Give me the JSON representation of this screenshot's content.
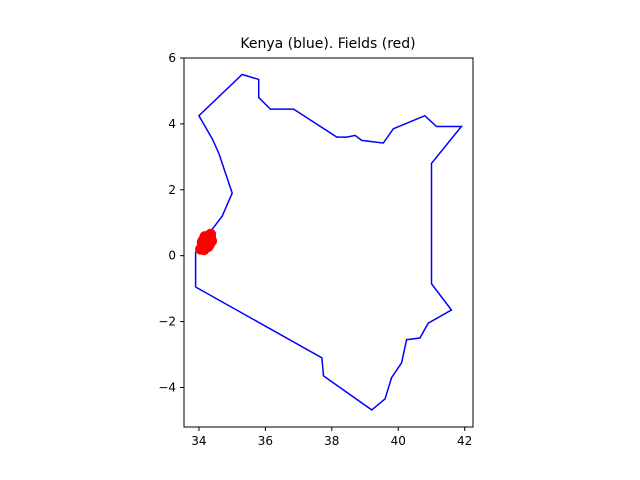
{
  "chart_data": {
    "type": "scatter",
    "title": "Kenya (blue). Fields (red)",
    "xlim": [
      33.55,
      42.25
    ],
    "ylim": [
      -5.2,
      6.0
    ],
    "x_ticks": [
      34,
      36,
      38,
      40,
      42
    ],
    "y_ticks": [
      -4,
      -2,
      0,
      2,
      4,
      6
    ],
    "grid": false,
    "series": [
      {
        "kind": "line",
        "color": "#0000ff",
        "points": [
          [
            33.9,
            -0.95
          ],
          [
            33.9,
            0.1
          ],
          [
            34.2,
            0.5
          ],
          [
            34.4,
            0.8
          ],
          [
            34.7,
            1.2
          ],
          [
            35.0,
            1.9
          ],
          [
            34.6,
            3.1
          ],
          [
            34.4,
            3.55
          ],
          [
            34.0,
            4.25
          ],
          [
            35.3,
            5.5
          ],
          [
            35.8,
            5.35
          ],
          [
            35.8,
            4.8
          ],
          [
            36.15,
            4.45
          ],
          [
            36.85,
            4.45
          ],
          [
            38.15,
            3.6
          ],
          [
            38.45,
            3.6
          ],
          [
            38.7,
            3.65
          ],
          [
            38.9,
            3.5
          ],
          [
            39.55,
            3.42
          ],
          [
            39.85,
            3.85
          ],
          [
            40.8,
            4.25
          ],
          [
            41.15,
            3.92
          ],
          [
            41.9,
            3.92
          ],
          [
            41.0,
            2.8
          ],
          [
            41.0,
            -0.85
          ],
          [
            41.6,
            -1.65
          ],
          [
            40.9,
            -2.05
          ],
          [
            40.65,
            -2.5
          ],
          [
            40.25,
            -2.55
          ],
          [
            40.1,
            -3.25
          ],
          [
            39.8,
            -3.7
          ],
          [
            39.6,
            -4.35
          ],
          [
            39.2,
            -4.68
          ],
          [
            37.75,
            -3.65
          ],
          [
            37.7,
            -3.1
          ],
          [
            33.9,
            -0.95
          ]
        ]
      },
      {
        "kind": "scatter",
        "color": "#ff0000",
        "points": [
          [
            34.05,
            0.2
          ],
          [
            34.1,
            0.25
          ],
          [
            34.15,
            0.3
          ],
          [
            34.1,
            0.4
          ],
          [
            34.2,
            0.5
          ],
          [
            34.25,
            0.55
          ],
          [
            34.3,
            0.6
          ],
          [
            34.35,
            0.65
          ],
          [
            34.38,
            0.45
          ],
          [
            34.3,
            0.4
          ],
          [
            34.22,
            0.35
          ],
          [
            34.15,
            0.18
          ],
          [
            34.32,
            0.35
          ],
          [
            34.28,
            0.28
          ],
          [
            34.18,
            0.58
          ],
          [
            34.12,
            0.45
          ],
          [
            34.35,
            0.55
          ],
          [
            34.25,
            0.42
          ]
        ]
      }
    ]
  }
}
